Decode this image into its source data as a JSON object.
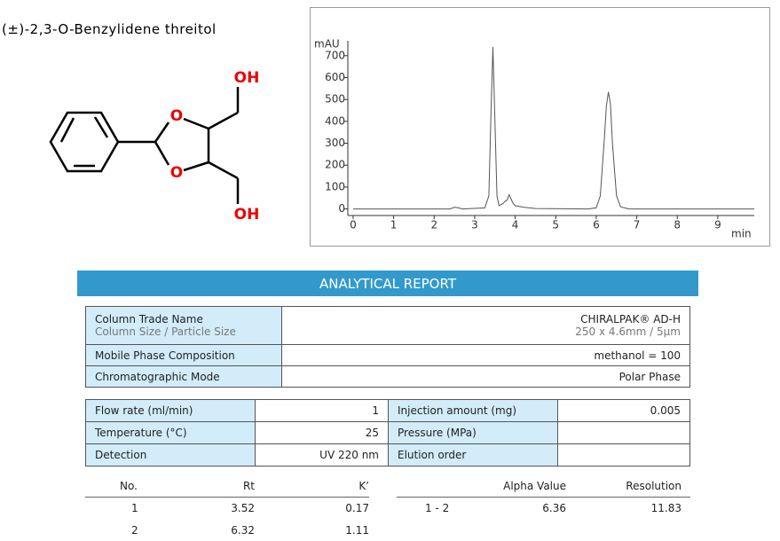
{
  "compound": {
    "title": "(±)-2,3-O-Benzylidene threitol",
    "atoms": [
      "OH",
      "O",
      "O",
      "OH"
    ]
  },
  "chart_data": {
    "type": "line",
    "y_unit": "mAU",
    "x_unit": "min",
    "x": [
      0,
      2.4,
      2.5,
      2.6,
      2.7,
      3.25,
      3.35,
      3.4,
      3.45,
      3.5,
      3.55,
      3.6,
      3.7,
      3.75,
      3.8,
      3.85,
      3.9,
      3.95,
      4.0,
      4.2,
      4.5,
      5.8,
      6.0,
      6.1,
      6.2,
      6.25,
      6.3,
      6.35,
      6.4,
      6.5,
      6.6,
      6.8,
      9.9
    ],
    "series": [
      {
        "name": "signal",
        "color": "#555555",
        "values": [
          0,
          0,
          8,
          5,
          0,
          5,
          60,
          420,
          740,
          400,
          60,
          15,
          25,
          35,
          40,
          65,
          45,
          25,
          15,
          8,
          2,
          0,
          5,
          60,
          320,
          470,
          535,
          480,
          300,
          60,
          10,
          0,
          0
        ]
      }
    ],
    "xlim": [
      -0.13,
      9.9
    ],
    "ylim": [
      -30,
      760
    ],
    "xticks": [
      0,
      1,
      2,
      3,
      4,
      5,
      6,
      7,
      8,
      9
    ],
    "yticks": [
      0,
      100,
      200,
      300,
      400,
      500,
      600,
      700
    ],
    "grid": false
  },
  "report": {
    "title": "ANALYTICAL REPORT",
    "column_info": [
      {
        "label": "Column Trade Name",
        "sublabel": "Column Size / Particle Size",
        "value": "CHIRALPAK® AD-H",
        "subvalue": "250 x 4.6mm / 5µm"
      },
      {
        "label": "Mobile Phase Composition",
        "value": "methanol = 100"
      },
      {
        "label": "Chromatographic Mode",
        "value": "Polar Phase"
      }
    ],
    "conditions": [
      [
        {
          "label": "Flow rate (ml/min)",
          "value": 1
        },
        {
          "label": "Injection amount (mg)",
          "value": 0.005
        }
      ],
      [
        {
          "label": "Temperature (°C)",
          "value": 25
        },
        {
          "label": "Pressure (MPa)"
        }
      ],
      [
        {
          "label": "Detection",
          "value": "UV 220 nm"
        },
        {
          "label": "Elution order"
        }
      ]
    ],
    "peaks": {
      "headers": [
        "No.",
        "Rt",
        "K’"
      ],
      "rows": [
        [
          1,
          3.52,
          0.17
        ],
        [
          2,
          6.32,
          1.11
        ]
      ]
    },
    "separation": {
      "headers": [
        "Alpha Value",
        "Resolution"
      ],
      "rows": [
        {
          "pair": "1 - 2",
          "alpha": 6.36,
          "resolution": 11.83
        }
      ]
    }
  }
}
